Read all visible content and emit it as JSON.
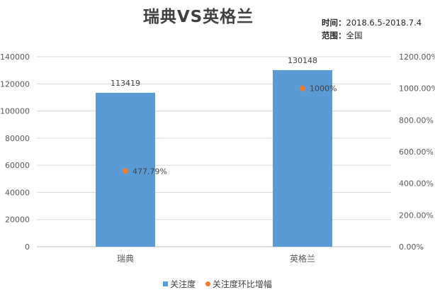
{
  "title": "瑞典VS英格兰",
  "meta": {
    "time_label": "时间：",
    "time_value": "2018.6.5-2018.7.4",
    "range_label": "范围：",
    "range_value": "全国"
  },
  "chart_data": {
    "type": "bar",
    "title": "瑞典VS英格兰",
    "categories": [
      "瑞典",
      "英格兰"
    ],
    "series": [
      {
        "name": "关注度",
        "type": "bar",
        "axis": "left",
        "values": [
          113419,
          130148
        ],
        "labels": [
          "113419",
          "130148"
        ],
        "color": "#5b9bd5"
      },
      {
        "name": "关注度环比增幅",
        "type": "scatter",
        "axis": "right",
        "values": [
          477.79,
          1000
        ],
        "labels": [
          "477.79%",
          "1000%"
        ],
        "color": "#ed7d31"
      }
    ],
    "ylim": [
      0,
      140000
    ],
    "yticks": [
      "0",
      "20000",
      "40000",
      "60000",
      "80000",
      "100000",
      "120000",
      "140000"
    ],
    "y2lim": [
      0,
      1200
    ],
    "y2ticks": [
      "0.00%",
      "200.00%",
      "400.00%",
      "600.00%",
      "800.00%",
      "1000.00%",
      "1200.00%"
    ],
    "grid": true,
    "legend_position": "bottom"
  }
}
